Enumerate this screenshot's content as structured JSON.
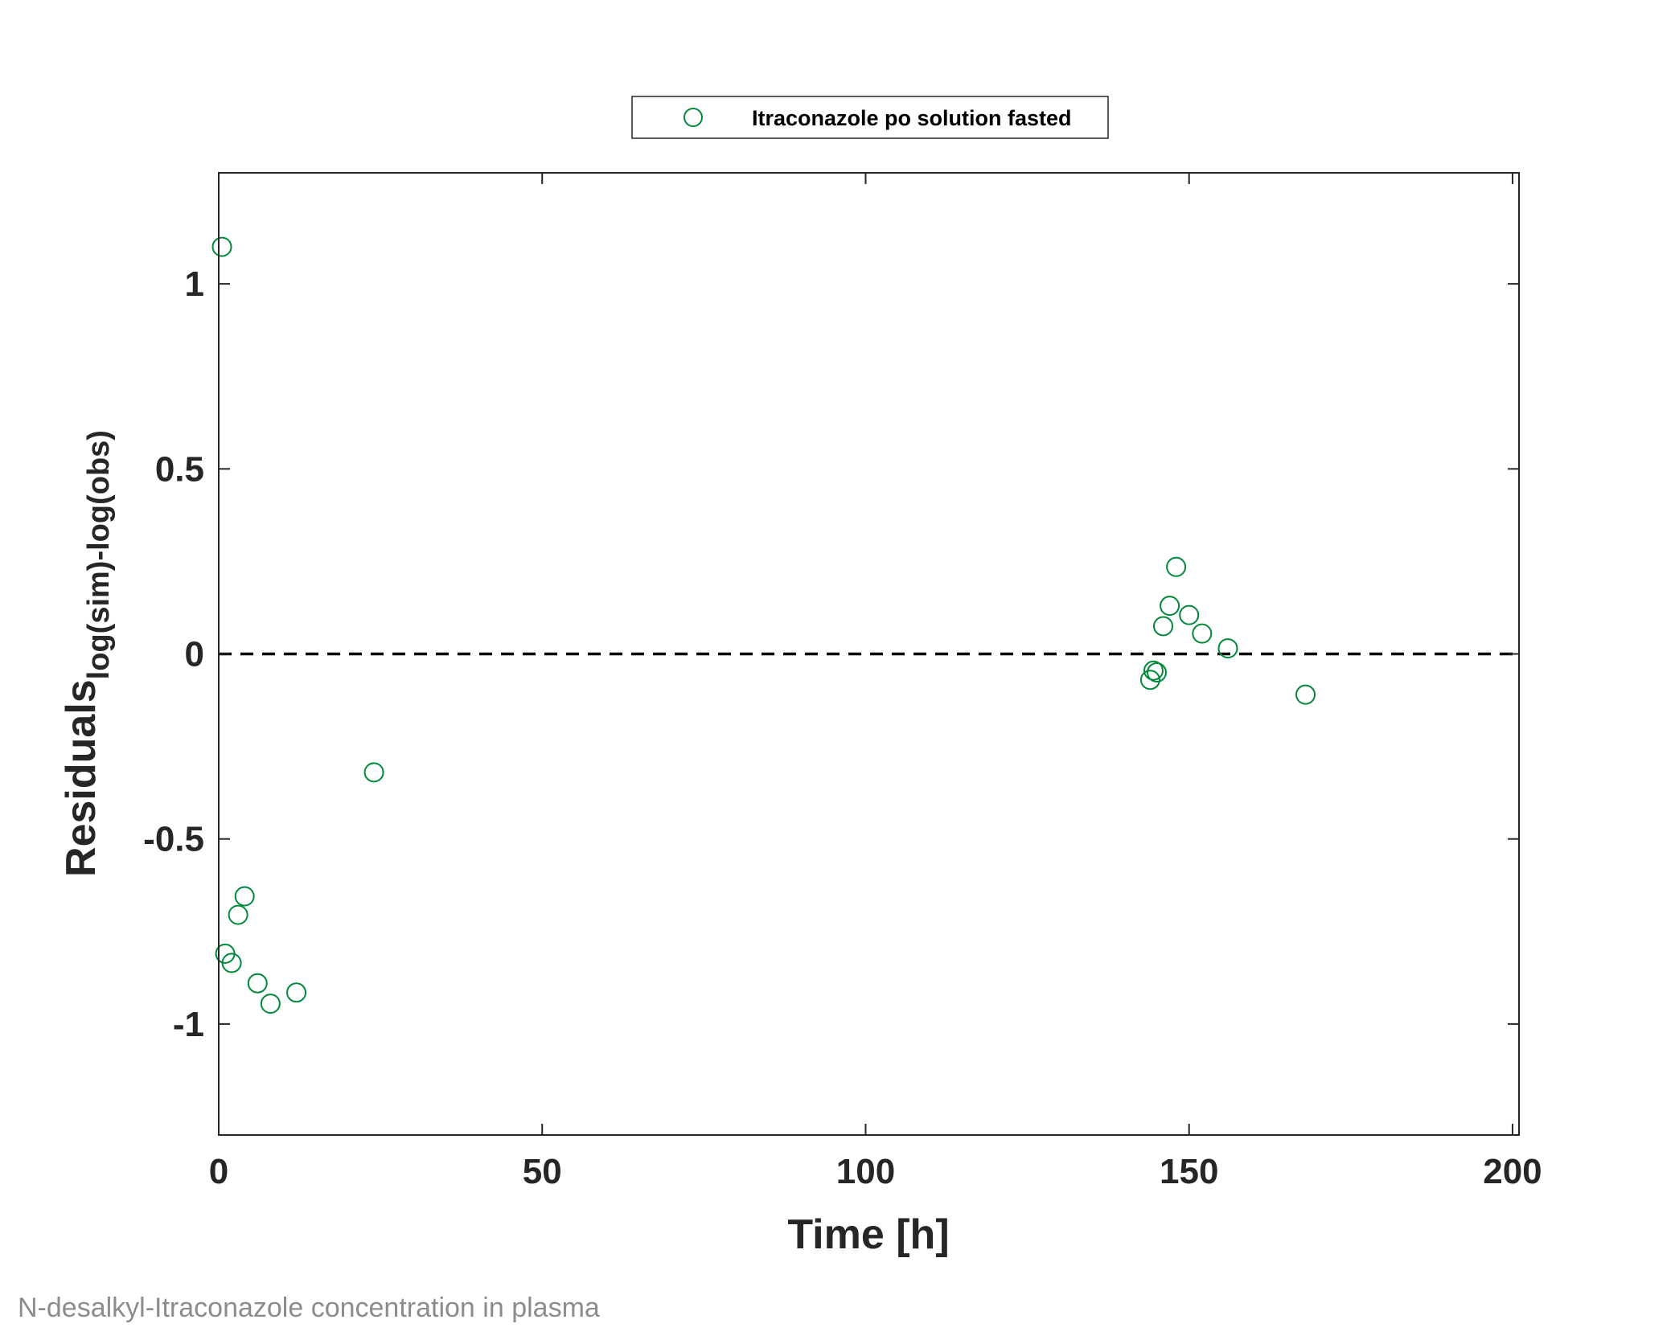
{
  "caption": "N-desalkyl-Itraconazole concentration in plasma",
  "chart_data": {
    "type": "scatter",
    "title": "",
    "xlabel": "Time [h]",
    "ylabel_main": "Residuals",
    "ylabel_subscript": "log(sim)-log(obs)",
    "xlim": [
      0,
      201
    ],
    "ylim": [
      -1.3,
      1.3
    ],
    "xticks": [
      0,
      50,
      100,
      150,
      200
    ],
    "xtick_labels": [
      "0",
      "50",
      "100",
      "150",
      "200"
    ],
    "yticks": [
      -1,
      -0.5,
      0,
      0.5,
      1
    ],
    "ytick_labels": [
      "-1",
      "-0.5",
      "0",
      "0.5",
      "1"
    ],
    "grid": false,
    "legend_position": "top-center",
    "reference_line": {
      "y": 0,
      "style": "dashed",
      "color": "#000000"
    },
    "series": [
      {
        "name": "Itraconazole po solution fasted",
        "marker": "open-circle",
        "color": "#00883b",
        "x": [
          0.5,
          1,
          2,
          3,
          4,
          6,
          8,
          12,
          24,
          144,
          144.5,
          145,
          146,
          147,
          148,
          150,
          152,
          156,
          168
        ],
        "y": [
          1.1,
          -0.81,
          -0.835,
          -0.705,
          -0.655,
          -0.89,
          -0.945,
          -0.915,
          -0.32,
          -0.07,
          -0.045,
          -0.05,
          0.075,
          0.13,
          0.235,
          0.105,
          0.055,
          0.015,
          -0.11
        ]
      }
    ]
  }
}
